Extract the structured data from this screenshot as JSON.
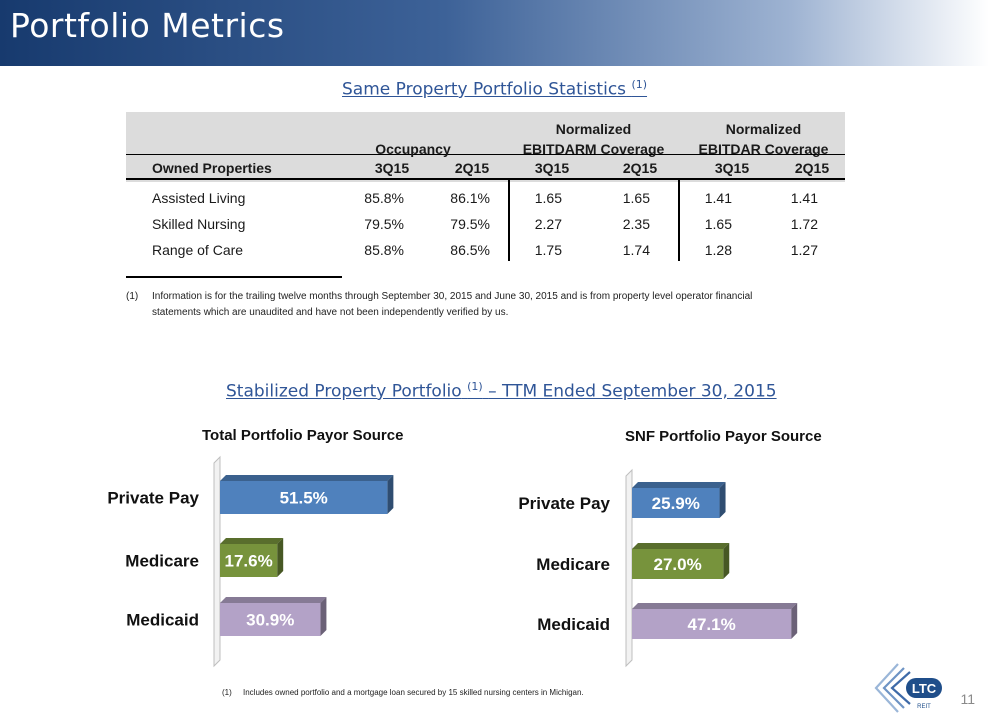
{
  "header": {
    "title": "Portfolio Metrics"
  },
  "same_property": {
    "title": "Same Property Portfolio Statistics",
    "title_ref": "(1)",
    "group_headers": [
      {
        "line1": "",
        "line2": "Occupancy"
      },
      {
        "line1": "Normalized",
        "line2": "EBITDARM Coverage"
      },
      {
        "line1": "Normalized",
        "line2": "EBITDAR Coverage"
      }
    ],
    "columns": [
      "Owned Properties",
      "3Q15",
      "2Q15",
      "3Q15",
      "2Q15",
      "3Q15",
      "2Q15"
    ],
    "rows": [
      [
        "Assisted Living",
        "85.8%",
        "86.1%",
        "1.65",
        "1.65",
        "1.41",
        "1.41"
      ],
      [
        "Skilled Nursing",
        "79.5%",
        "79.5%",
        "2.27",
        "2.35",
        "1.65",
        "1.72"
      ],
      [
        "Range of Care",
        "85.8%",
        "86.5%",
        "1.75",
        "1.74",
        "1.28",
        "1.27"
      ]
    ],
    "footnote_marker": "(1)",
    "footnote_line1": "Information is for the trailing twelve months through September 30, 2015 and June 30, 2015 and is from property level operator financial",
    "footnote_line2": "statements which are unaudited and have not been independently verified by us."
  },
  "stabilized": {
    "title_main": "Stabilized Property Portfolio",
    "title_ref": "(1)",
    "title_tail": "– TTM Ended September 30, 2015"
  },
  "chart_data": [
    {
      "type": "bar",
      "orientation": "horizontal",
      "title": "Total Portfolio Payor Source",
      "categories": [
        "Private Pay",
        "Medicare",
        "Medicaid"
      ],
      "values": [
        51.5,
        17.6,
        30.9
      ],
      "labels": [
        "51.5%",
        "17.6%",
        "30.9%"
      ],
      "colors": [
        "#4f81bd",
        "#77933c",
        "#b3a2c7"
      ],
      "grid": false
    },
    {
      "type": "bar",
      "orientation": "horizontal",
      "title": "SNF Portfolio Payor Source",
      "categories": [
        "Private Pay",
        "Medicare",
        "Medicaid"
      ],
      "values": [
        25.9,
        27.0,
        47.1
      ],
      "labels": [
        "25.9%",
        "27.0%",
        "47.1%"
      ],
      "colors": [
        "#4f81bd",
        "#77933c",
        "#b3a2c7"
      ],
      "grid": false
    }
  ],
  "bottom_footnote": {
    "marker": "(1)",
    "text": "Includes owned portfolio and a mortgage loan secured by 15 skilled nursing centers in Michigan."
  },
  "logo": {
    "text": "LTC",
    "subtext": "REIT",
    "icon": "ltc-reit-logo-icon"
  },
  "page_number": "11"
}
